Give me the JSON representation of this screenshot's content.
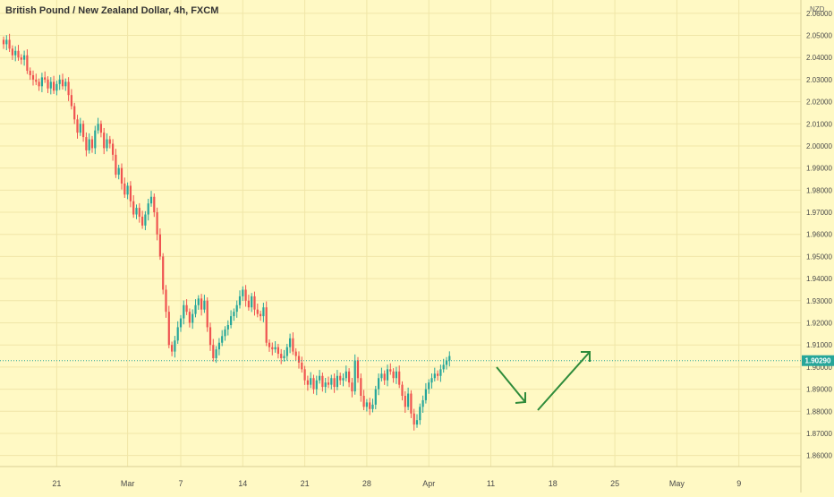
{
  "header": {
    "title": "British Pound / New Zealand Dollar, 4h, FXCM"
  },
  "price_axis": {
    "currency": "NZD",
    "current_price_label": "1.90290"
  },
  "colors": {
    "background": "#fff9c4",
    "up_candle": "#26a69a",
    "down_candle": "#ef5350",
    "current_price_line": "#26a69a",
    "arrow": "#2e8b3a",
    "grid": "#f0e6a8",
    "axis_text": "#4a4a4a"
  },
  "chart_data": {
    "type": "candlestick",
    "title": "British Pound / New Zealand Dollar, 4h, FXCM",
    "symbol": "GBPNZD",
    "interval": "4h",
    "source": "FXCM",
    "ylim": [
      1.855,
      2.066
    ],
    "y_ticks": [
      "2.06000",
      "2.05000",
      "2.04000",
      "2.03000",
      "2.02000",
      "2.01000",
      "2.00000",
      "1.99000",
      "1.98000",
      "1.97000",
      "1.96000",
      "1.95000",
      "1.94000",
      "1.93000",
      "1.92000",
      "1.91000",
      "1.90000",
      "1.89000",
      "1.88000",
      "1.87000",
      "1.86000"
    ],
    "y_tick_values": [
      2.06,
      2.05,
      2.04,
      2.03,
      2.02,
      2.01,
      2.0,
      1.99,
      1.98,
      1.97,
      1.96,
      1.95,
      1.94,
      1.93,
      1.92,
      1.91,
      1.9,
      1.89,
      1.88,
      1.87,
      1.86
    ],
    "x_ticks": [
      "21",
      "Mar",
      "7",
      "14",
      "21",
      "28",
      "Apr",
      "11",
      "18",
      "25",
      "May",
      "9"
    ],
    "x_tick_index": [
      18,
      42,
      60,
      81,
      102,
      123,
      144,
      165,
      186,
      207,
      228,
      249
    ],
    "current_price": 1.9029,
    "grid": true,
    "close": [
      2.046,
      2.048,
      2.044,
      2.041,
      2.043,
      2.04,
      2.039,
      2.041,
      2.034,
      2.032,
      2.03,
      2.029,
      2.027,
      2.031,
      2.03,
      2.026,
      2.029,
      2.025,
      2.028,
      2.03,
      2.027,
      2.029,
      2.023,
      2.018,
      2.012,
      2.006,
      2.01,
      2.004,
      1.998,
      2.003,
      1.999,
      2.007,
      2.01,
      2.006,
      1.999,
      2.003,
      2.001,
      1.996,
      1.987,
      1.99,
      1.983,
      1.978,
      1.982,
      1.975,
      1.969,
      1.972,
      1.968,
      1.964,
      1.969,
      1.974,
      1.977,
      1.97,
      1.96,
      1.95,
      1.935,
      1.925,
      1.91,
      1.907,
      1.912,
      1.918,
      1.922,
      1.928,
      1.925,
      1.92,
      1.924,
      1.928,
      1.931,
      1.926,
      1.93,
      1.918,
      1.91,
      1.904,
      1.908,
      1.911,
      1.914,
      1.917,
      1.919,
      1.923,
      1.925,
      1.928,
      1.932,
      1.935,
      1.93,
      1.927,
      1.932,
      1.926,
      1.924,
      1.923,
      1.927,
      1.911,
      1.909,
      1.908,
      1.909,
      1.906,
      1.904,
      1.905,
      1.909,
      1.913,
      1.907,
      1.905,
      1.902,
      1.899,
      1.894,
      1.892,
      1.895,
      1.89,
      1.894,
      1.896,
      1.891,
      1.893,
      1.892,
      1.895,
      1.891,
      1.896,
      1.894,
      1.895,
      1.898,
      1.893,
      1.889,
      1.903,
      1.895,
      1.887,
      1.882,
      1.884,
      1.881,
      1.883,
      1.89,
      1.895,
      1.897,
      1.894,
      1.899,
      1.898,
      1.895,
      1.898,
      1.892,
      1.887,
      1.882,
      1.888,
      1.879,
      1.874,
      1.876,
      1.882,
      1.885,
      1.89,
      1.893,
      1.895,
      1.897,
      1.896,
      1.899,
      1.901,
      1.903,
      1.905
    ]
  }
}
